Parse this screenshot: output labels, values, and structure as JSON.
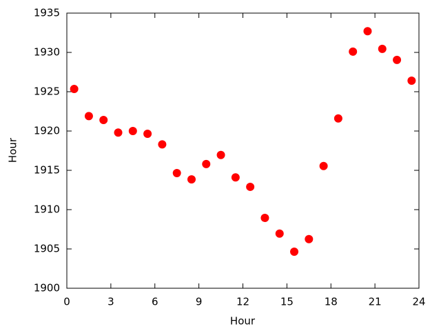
{
  "chart_data": {
    "type": "scatter",
    "x_label": "Hour",
    "y_label": "Hour",
    "color": "#ff0000",
    "x": [
      0.5,
      1.5,
      2.5,
      3.5,
      4.5,
      5.5,
      6.5,
      7.5,
      8.5,
      9.5,
      10.5,
      11.5,
      12.5,
      13.5,
      14.5,
      15.5,
      16.5,
      17.5,
      18.5,
      19.5,
      20.5,
      21.5,
      22.5,
      23.5
    ],
    "values": [
      1925.35,
      1921.9,
      1921.4,
      1919.8,
      1920.0,
      1919.65,
      1918.3,
      1914.65,
      1913.85,
      1915.8,
      1916.95,
      1914.1,
      1912.9,
      1908.95,
      1906.95,
      1904.65,
      1906.25,
      1915.55,
      1921.6,
      1930.1,
      1932.7,
      1930.45,
      1929.05,
      1926.4
    ],
    "xlim": [
      0,
      24
    ],
    "xticks": [
      0,
      3,
      6,
      9,
      12,
      15,
      18,
      21,
      24
    ],
    "ylim": [
      1900,
      1935
    ],
    "yticks": [
      1900,
      1905,
      1910,
      1915,
      1920,
      1925,
      1930,
      1935
    ]
  }
}
